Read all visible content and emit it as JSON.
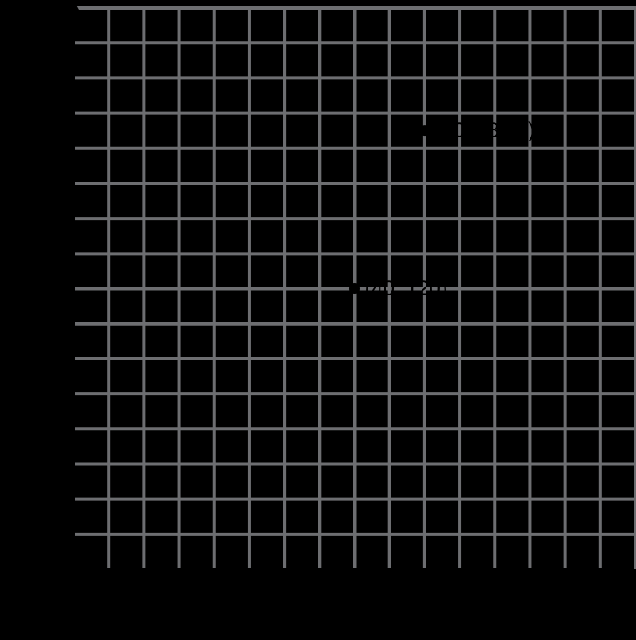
{
  "figure": {
    "background_color": "#000000",
    "grid_color": "#6d6e71",
    "axis_color": "#000000",
    "point_color": "#000000",
    "label_color": "#000000",
    "label_font_size": 26
  },
  "chart_data": {
    "type": "scatter",
    "grid": true,
    "xlim": [
      0,
      80
    ],
    "ylim": [
      0,
      240
    ],
    "x_grid_step": 5,
    "y_grid_step": 15,
    "points": [
      {
        "x": 40,
        "y": 120,
        "label": "(40, 120)"
      },
      {
        "x": 50,
        "y": 187.5,
        "label": "(50, 187.5)"
      }
    ]
  }
}
